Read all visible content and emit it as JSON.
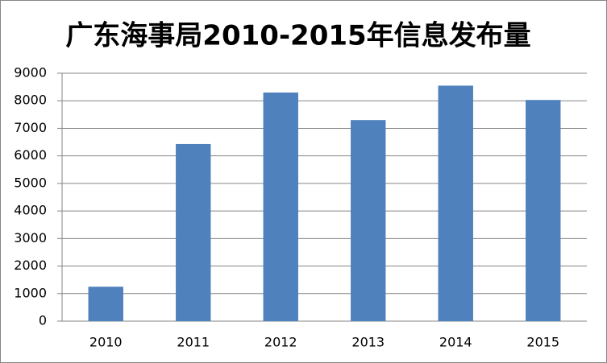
{
  "chart_data": {
    "type": "bar",
    "title": "广东海事局2010-2015年信息发布量",
    "categories": [
      "2010",
      "2011",
      "2012",
      "2013",
      "2014",
      "2015"
    ],
    "values": [
      1250,
      6430,
      8300,
      7300,
      8550,
      8030
    ],
    "color": "#4f81bd",
    "ylim": [
      0,
      9000
    ],
    "yticks": [
      0,
      1000,
      2000,
      3000,
      4000,
      5000,
      6000,
      7000,
      8000,
      9000
    ],
    "grid": true
  }
}
